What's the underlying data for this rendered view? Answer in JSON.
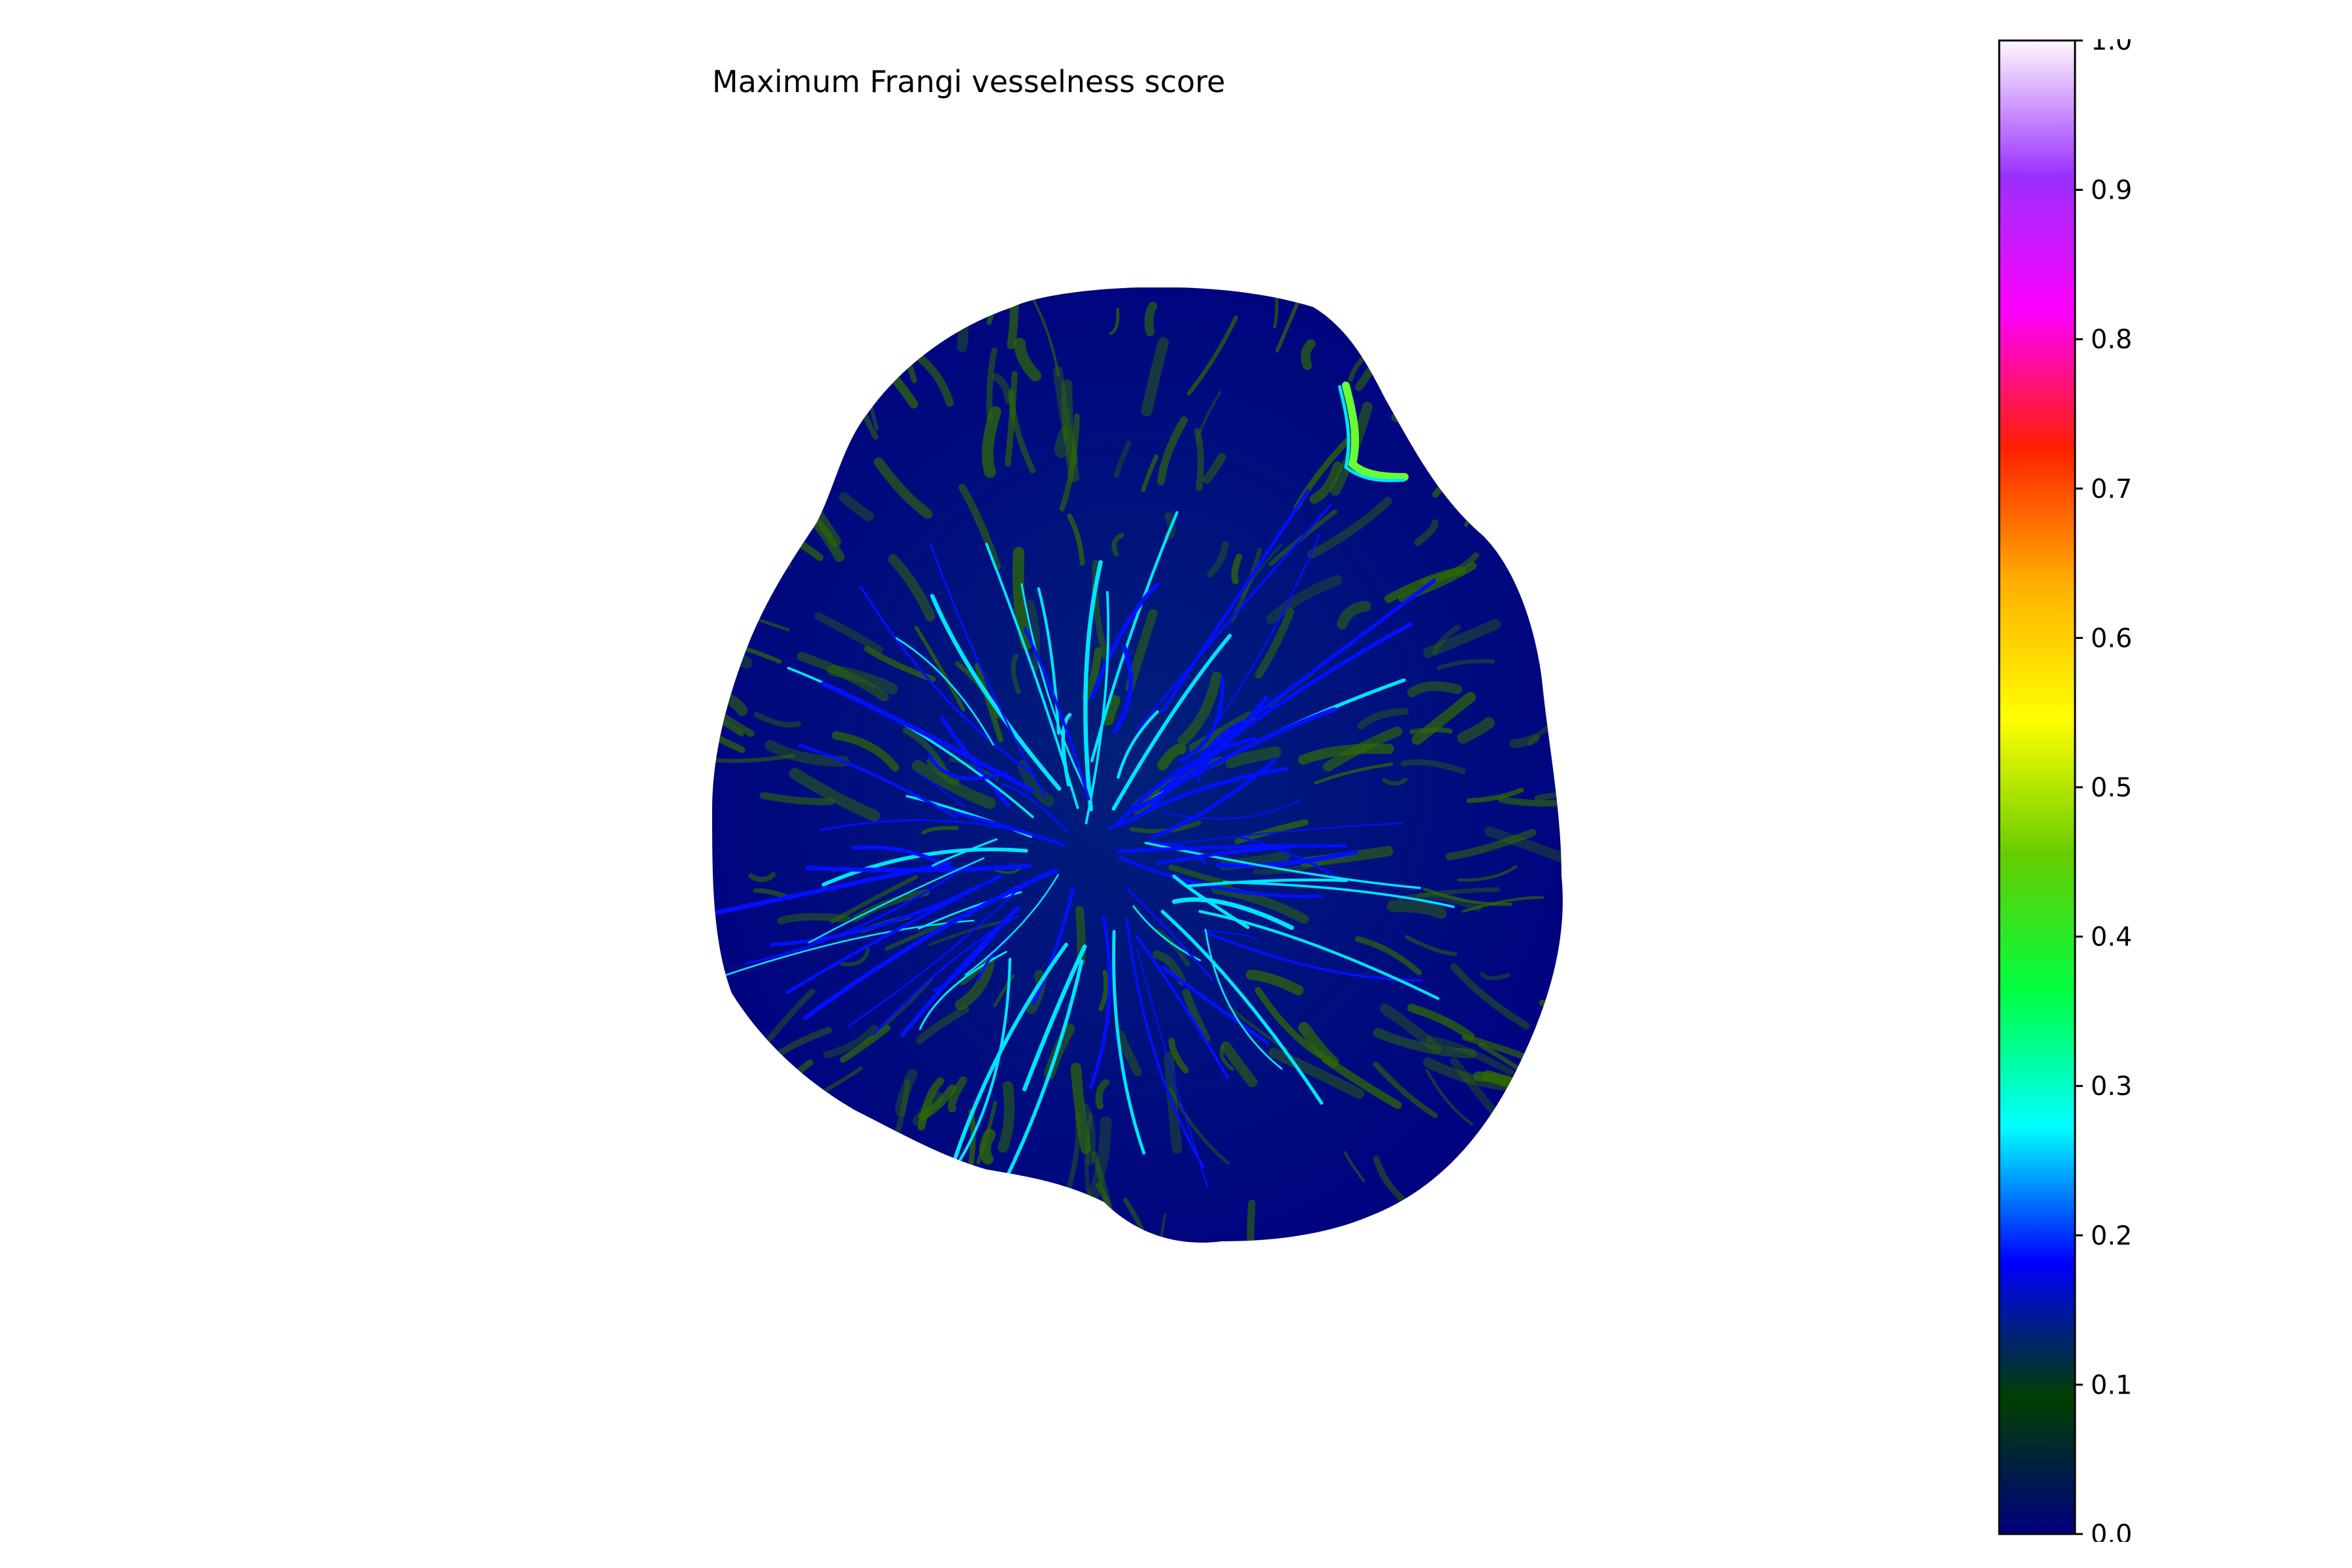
{
  "title": "Maximum Frangi vesselness score",
  "image": {
    "subject": "vessel-map",
    "background_color": "#000080",
    "vessel_colors": [
      "#2e6b00",
      "#0011ff",
      "#00e5ff",
      "#66ff33"
    ]
  },
  "colorbar": {
    "vmin": 0.0,
    "vmax": 1.0,
    "colormap": "gist_ncar",
    "ticks": [
      "0.0",
      "0.1",
      "0.2",
      "0.3",
      "0.4",
      "0.5",
      "0.6",
      "0.7",
      "0.8",
      "0.9",
      "1.0"
    ],
    "stops": [
      "#000080",
      "#004000",
      "#0000ff",
      "#00ffff",
      "#00ff40",
      "#66cc00",
      "#ffff00",
      "#ffb000",
      "#ff2000",
      "#ff00ff",
      "#9a30ff",
      "#fff8fe"
    ]
  }
}
